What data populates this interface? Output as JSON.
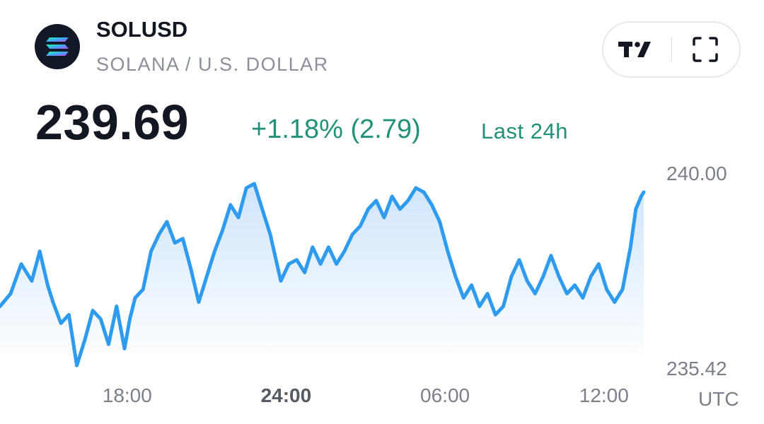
{
  "header": {
    "symbol": "SOLUSD",
    "pair_name": "SOLANA / U.S. DOLLAR",
    "logo_icon": "solana-logo-icon",
    "brand_icon": "tradingview-logo-icon",
    "fullscreen_icon": "fullscreen-icon"
  },
  "quote": {
    "price": "239.69",
    "change": "+1.18% (2.79)",
    "period": "Last 24h"
  },
  "colors": {
    "line": "#2f9bef",
    "fill_top": "#cfe5fb",
    "fill_bottom": "#ffffff",
    "positive": "#22917a"
  },
  "chart_data": {
    "type": "area",
    "title": "",
    "xlabel": "",
    "ylabel": "",
    "timezone_label": "UTC",
    "x_ticks": [
      {
        "label": "18:00",
        "hour": 18,
        "bold": false
      },
      {
        "label": "24:00",
        "hour": 24,
        "bold": true
      },
      {
        "label": "06:00",
        "hour": 30,
        "bold": false
      },
      {
        "label": "12:00",
        "hour": 36,
        "bold": false
      }
    ],
    "y_ticks": [
      {
        "label": "240.00",
        "value": 240.0
      },
      {
        "label": "235.42",
        "value": 235.42
      }
    ],
    "ylim": [
      235.42,
      240.0
    ],
    "x_range_hours": [
      13.2,
      37.5
    ],
    "grid": false,
    "series": [
      {
        "hours": [
          13.2,
          13.6,
          14.0,
          14.4,
          14.7,
          15.0,
          15.2,
          15.5,
          15.8,
          16.1,
          16.4,
          16.7,
          17.0,
          17.3,
          17.6,
          17.9,
          18.1,
          18.3,
          18.6,
          18.9,
          19.2,
          19.5,
          19.8,
          20.1,
          20.4,
          20.7,
          21.0,
          21.3,
          21.6,
          21.9,
          22.2,
          22.5,
          22.8,
          23.1,
          23.4,
          23.8,
          24.1,
          24.4,
          24.7,
          25.0,
          25.3,
          25.6,
          25.9,
          26.2,
          26.5,
          26.8,
          27.1,
          27.4,
          27.7,
          28.0,
          28.3,
          28.6,
          28.9,
          29.2,
          29.5,
          29.8,
          30.1,
          30.4,
          30.7,
          31.0,
          31.3,
          31.6,
          31.9,
          32.2,
          32.5,
          32.8,
          33.1,
          33.4,
          33.7,
          34.0,
          34.3,
          34.6,
          34.9,
          35.2,
          35.5,
          35.8,
          36.1,
          36.4,
          36.7,
          37.0,
          37.2,
          37.4,
          37.5
        ],
        "values": [
          236.9,
          237.2,
          237.9,
          237.5,
          238.2,
          237.4,
          237.0,
          236.5,
          236.7,
          235.5,
          236.1,
          236.8,
          236.6,
          236.0,
          236.9,
          235.9,
          236.6,
          237.1,
          237.3,
          238.2,
          238.6,
          238.9,
          238.4,
          238.5,
          237.8,
          237.0,
          237.6,
          238.2,
          238.7,
          239.3,
          239.0,
          239.7,
          239.8,
          239.2,
          238.6,
          237.5,
          237.9,
          238.0,
          237.7,
          238.3,
          237.9,
          238.3,
          237.9,
          238.2,
          238.6,
          238.8,
          239.2,
          239.4,
          239.0,
          239.5,
          239.2,
          239.4,
          239.7,
          239.6,
          239.3,
          238.9,
          238.2,
          237.6,
          237.1,
          237.4,
          236.9,
          237.2,
          236.7,
          236.9,
          237.6,
          238.0,
          237.5,
          237.2,
          237.6,
          238.1,
          237.6,
          237.2,
          237.4,
          237.1,
          237.6,
          237.9,
          237.3,
          237.0,
          237.3,
          238.3,
          239.2,
          239.5,
          239.6
        ]
      }
    ]
  }
}
